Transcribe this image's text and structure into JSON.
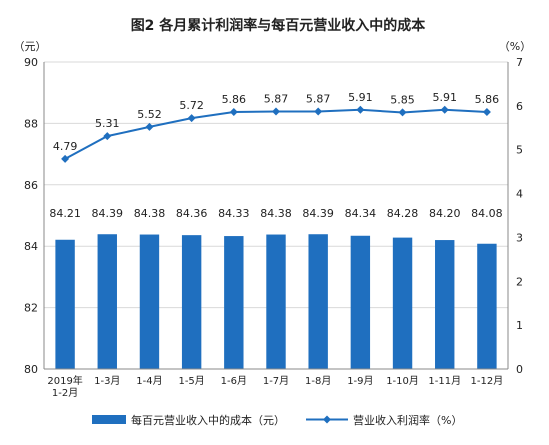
{
  "chart_data": {
    "type": "bar",
    "title": "图2  各月累计利润率与每百元营业收入中的成本",
    "categories": [
      "2019年\n1-2月",
      "1-3月",
      "1-4月",
      "1-5月",
      "1-6月",
      "1-7月",
      "1-8月",
      "1-9月",
      "1-10月",
      "1-11月",
      "1-12月"
    ],
    "series": [
      {
        "name": "每百元营业收入中的成本（元）",
        "type": "bar",
        "axis": "left",
        "color": "#1f6fbf",
        "values": [
          84.21,
          84.39,
          84.38,
          84.36,
          84.33,
          84.38,
          84.39,
          84.34,
          84.28,
          84.2,
          84.08
        ],
        "labels": [
          "84.21",
          "84.39",
          "84.38",
          "84.36",
          "84.33",
          "84.38",
          "84.39",
          "84.34",
          "84.28",
          "84.20",
          "84.08"
        ]
      },
      {
        "name": "营业收入利润率（%）",
        "type": "line",
        "axis": "right",
        "color": "#1f6fbf",
        "values": [
          4.79,
          5.31,
          5.52,
          5.72,
          5.86,
          5.87,
          5.87,
          5.91,
          5.85,
          5.91,
          5.86
        ],
        "labels": [
          "4.79",
          "5.31",
          "5.52",
          "5.72",
          "5.86",
          "5.87",
          "5.87",
          "5.91",
          "5.85",
          "5.91",
          "5.86"
        ]
      }
    ],
    "y_left": {
      "unit": "（元）",
      "min": 80,
      "max": 90,
      "ticks": [
        "80",
        "82",
        "84",
        "86",
        "88",
        "90"
      ]
    },
    "y_right": {
      "unit": "（%）",
      "min": 0,
      "max": 7,
      "ticks": [
        "0",
        "1",
        "2",
        "3",
        "4",
        "5",
        "6",
        "7"
      ]
    },
    "grid": true,
    "legend": "bottom"
  }
}
